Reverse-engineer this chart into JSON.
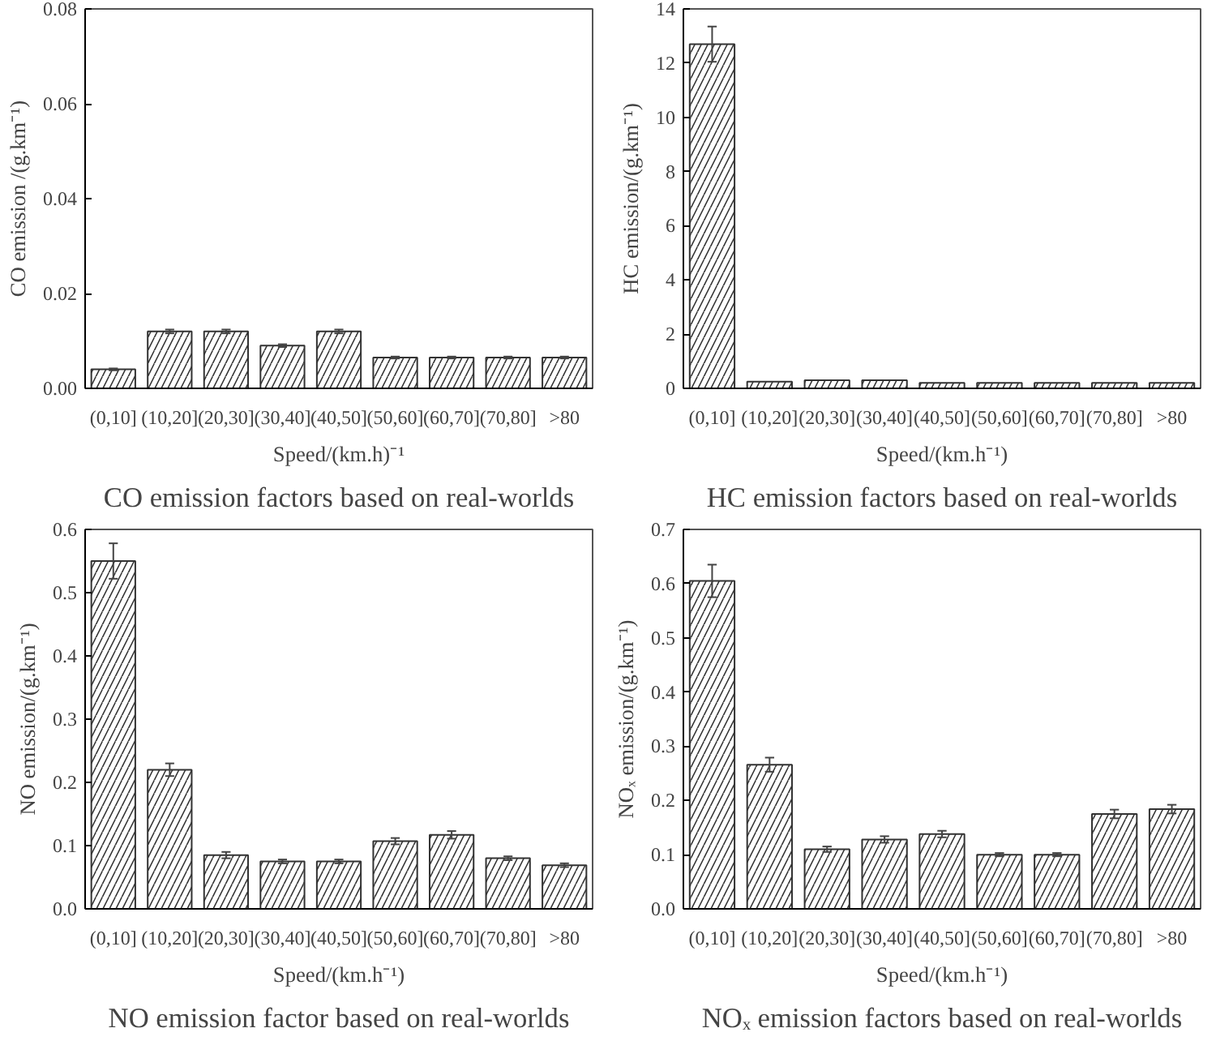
{
  "chart_data": [
    {
      "type": "bar",
      "title": "CO emission factors based on real-worlds",
      "xlabel": "Speed/(km.h)⁻¹",
      "ylabel": "CO emission /(g.km⁻¹)",
      "categories": [
        "(0,10]",
        "(10,20]",
        "(20,30]",
        "(30,40]",
        "(40,50]",
        "(50,60]",
        "(60,70]",
        "(70,80]",
        ">80"
      ],
      "values": [
        0.004,
        0.012,
        0.012,
        0.009,
        0.012,
        0.0065,
        0.0065,
        0.0065,
        0.0065
      ],
      "errors": [
        0.0002,
        0.0004,
        0.0004,
        0.0003,
        0.0004,
        0.0002,
        0.0002,
        0.0002,
        0.0002
      ],
      "color": "#333333",
      "ylim": [
        0,
        0.08
      ],
      "yticks": [
        {
          "value": 0,
          "label": "0.00"
        },
        {
          "value": 0.02,
          "label": "0.02"
        },
        {
          "value": 0.04,
          "label": "0.04"
        },
        {
          "value": 0.06,
          "label": "0.06"
        },
        {
          "value": 0.08,
          "label": "0.08"
        }
      ]
    },
    {
      "type": "bar",
      "title": "HC emission factors based on real-worlds",
      "xlabel": "Speed/(km.h⁻¹)",
      "ylabel": "HC emission/(g.km⁻¹)",
      "categories": [
        "(0,10]",
        "(10,20]",
        "(20,30]",
        "(30,40]",
        "(40,50]",
        "(50,60]",
        "(60,70]",
        "(70,80]",
        ">80"
      ],
      "values": [
        12.7,
        0.25,
        0.3,
        0.3,
        0.2,
        0.2,
        0.2,
        0.2,
        0.2
      ],
      "errors": [
        0.65,
        null,
        null,
        null,
        null,
        null,
        null,
        null,
        null
      ],
      "color": "#333333",
      "ylim": [
        0,
        14
      ],
      "yticks": [
        0,
        2,
        4,
        6,
        8,
        10,
        12,
        14
      ]
    },
    {
      "type": "bar",
      "title": "NO emission factor based on real-worlds",
      "xlabel": "Speed/(km.h⁻¹)",
      "ylabel": "NO emission/(g.km⁻¹)",
      "categories": [
        "(0,10]",
        "(10,20]",
        "(20,30]",
        "(30,40]",
        "(40,50]",
        "(50,60]",
        "(60,70]",
        "(70,80]",
        ">80"
      ],
      "values": [
        0.55,
        0.22,
        0.085,
        0.075,
        0.075,
        0.107,
        0.117,
        0.08,
        0.069
      ],
      "errors": [
        0.028,
        0.01,
        0.005,
        0.003,
        0.003,
        0.005,
        0.006,
        0.003,
        0.003
      ],
      "color": "#333333",
      "ylim": [
        0,
        0.6
      ],
      "yticks": [
        {
          "value": 0,
          "label": "0.0"
        },
        0.1,
        0.2,
        0.3,
        0.4,
        0.5,
        0.6
      ]
    },
    {
      "type": "bar",
      "title": "NOₓ emission factors based on real-worlds",
      "xlabel": "Speed/(km.h⁻¹)",
      "ylabel": "NOₓ emission/(g.km⁻¹)",
      "categories": [
        "(0,10]",
        "(10,20]",
        "(20,30]",
        "(30,40]",
        "(40,50]",
        "(50,60]",
        "(60,70]",
        "(70,80]",
        ">80"
      ],
      "values": [
        0.605,
        0.266,
        0.11,
        0.128,
        0.138,
        0.1,
        0.1,
        0.175,
        0.184
      ],
      "errors": [
        0.03,
        0.013,
        0.005,
        0.006,
        0.006,
        0.003,
        0.003,
        0.008,
        0.008
      ],
      "color": "#333333",
      "ylim": [
        0,
        0.7
      ],
      "yticks": [
        {
          "value": 0,
          "label": "0.0"
        },
        0.1,
        0.2,
        0.3,
        0.4,
        0.5,
        0.6,
        0.7
      ]
    }
  ]
}
